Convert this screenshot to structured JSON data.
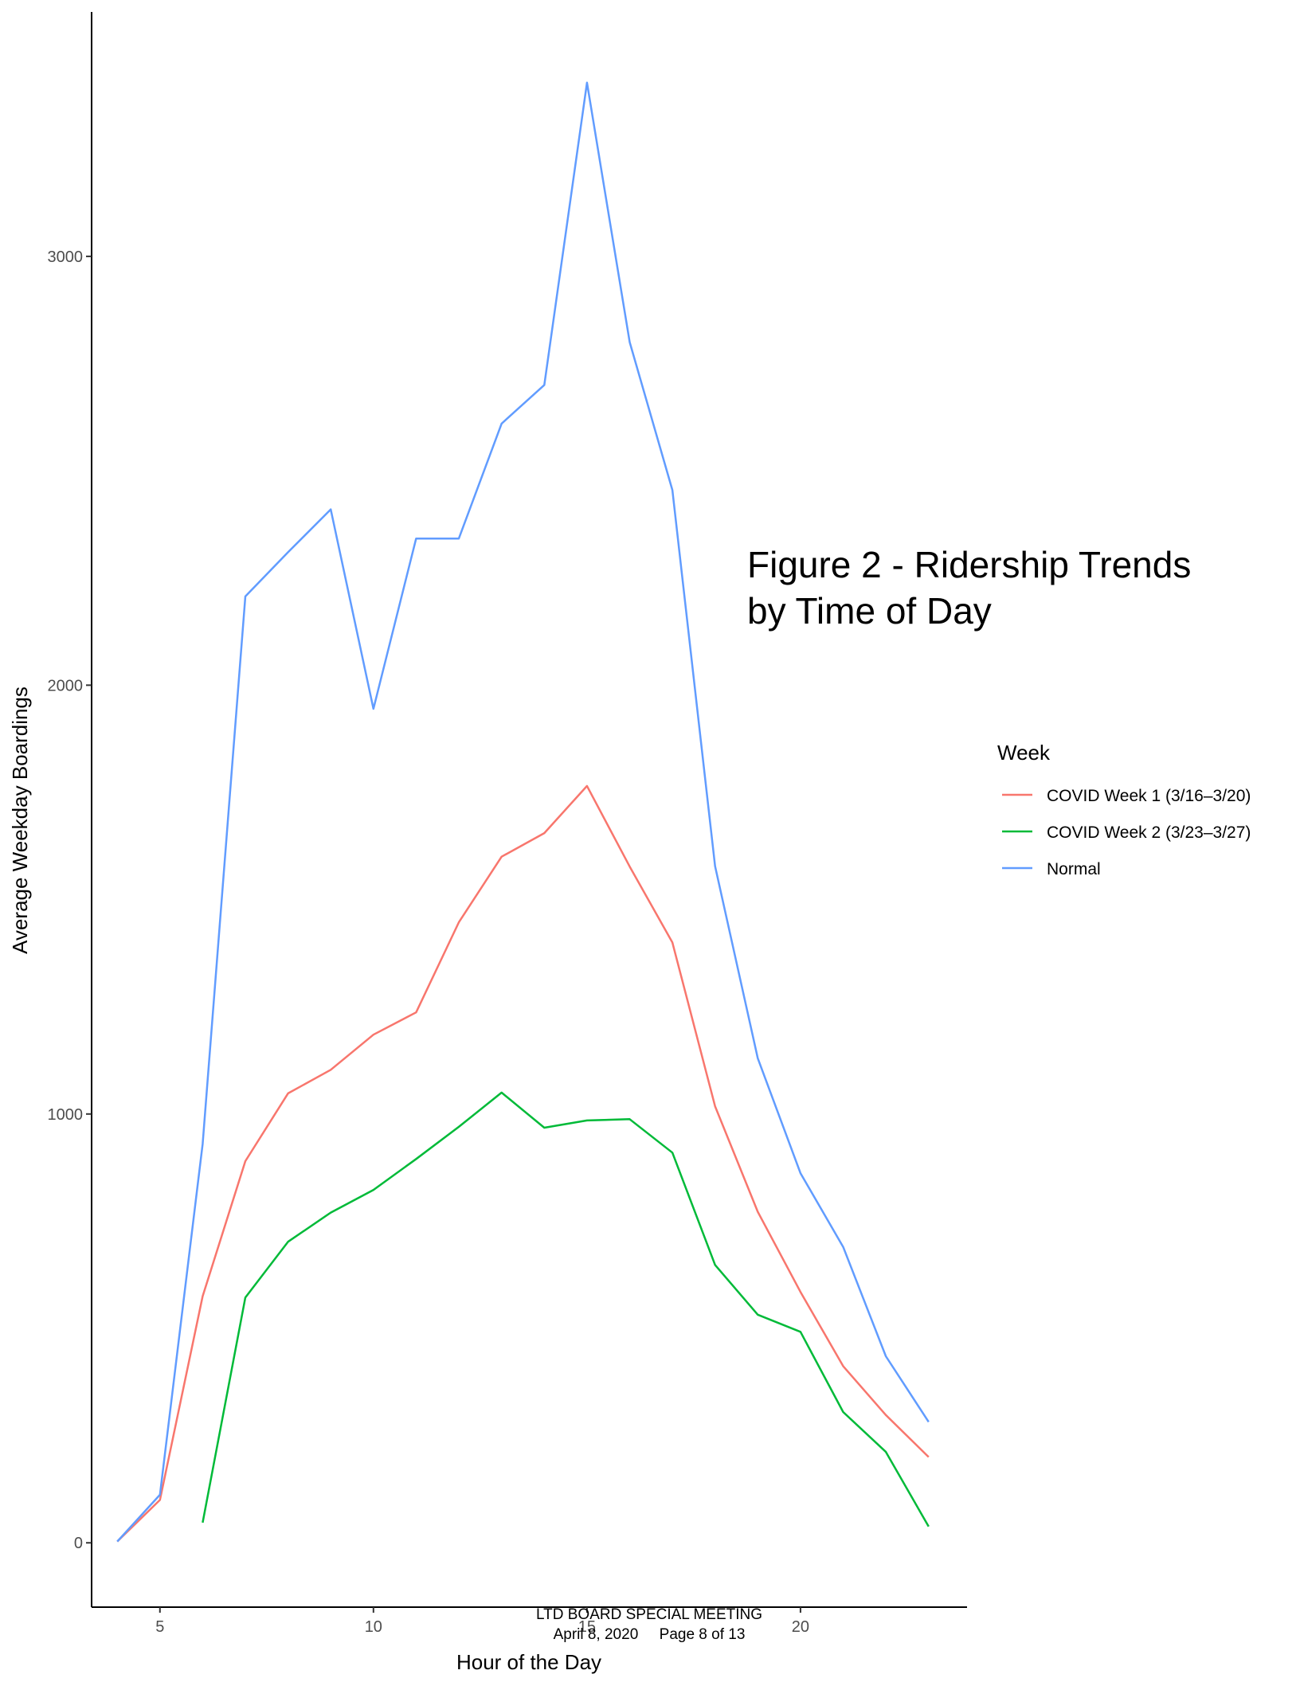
{
  "chart_data": {
    "type": "line",
    "title": "",
    "annotation": [
      "Figure 2 - Ridership Trends",
      "by Time of Day"
    ],
    "xlabel": "Hour of the Day",
    "ylabel": "Average Weekday Boardings",
    "xlim": [
      3.4,
      23.9
    ],
    "ylim": [
      -150,
      3570
    ],
    "x_ticks": [
      5,
      10,
      15,
      20
    ],
    "y_ticks": [
      0,
      1000,
      2000,
      3000
    ],
    "grid": false,
    "legend": {
      "title": "Week",
      "position": "right"
    },
    "series": [
      {
        "name": "COVID Week 1 (3/16–3/20)",
        "color": "#F8766D",
        "x": [
          4,
          5,
          6,
          7,
          8,
          9,
          10,
          11,
          12,
          13,
          14,
          15,
          16,
          17,
          18,
          19,
          20,
          21,
          22,
          23
        ],
        "y": [
          3,
          100,
          575,
          890,
          1048,
          1103,
          1185,
          1237,
          1447,
          1600,
          1655,
          1765,
          1577,
          1400,
          1018,
          772,
          585,
          412,
          298,
          200
        ]
      },
      {
        "name": "COVID Week 2 (3/23–3/27)",
        "color": "#00BA38",
        "x": [
          6,
          7,
          8,
          9,
          10,
          11,
          12,
          13,
          14,
          15,
          16,
          17,
          18,
          19,
          20,
          21,
          22,
          23
        ],
        "y": [
          47,
          572,
          702,
          770,
          823,
          895,
          970,
          1050,
          968,
          985,
          988,
          910,
          648,
          532,
          492,
          305,
          212,
          38
        ]
      },
      {
        "name": "Normal",
        "color": "#619CFF",
        "x": [
          4,
          5,
          6,
          7,
          8,
          9,
          10,
          11,
          12,
          13,
          14,
          15,
          16,
          17,
          18,
          19,
          20,
          21,
          22,
          23
        ],
        "y": [
          3,
          112,
          930,
          2207,
          2310,
          2410,
          1945,
          2342,
          2342,
          2610,
          2700,
          3405,
          2800,
          2455,
          1578,
          1130,
          862,
          690,
          435,
          282
        ]
      }
    ]
  },
  "footer": {
    "line1": "LTD BOARD SPECIAL MEETING",
    "line2": "April 8, 2020     Page 8 of 13"
  }
}
